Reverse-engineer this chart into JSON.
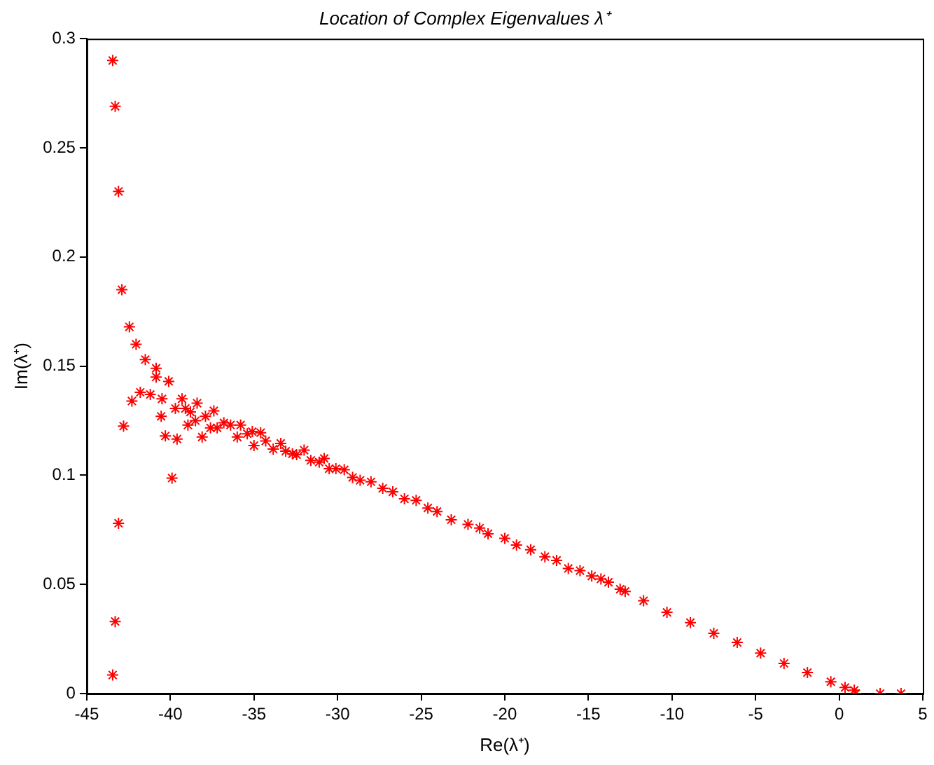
{
  "chart_data": {
    "type": "scatter",
    "title": "Location of Complex Eigenvalues λ⁺",
    "xlabel": "Re(λ⁺)",
    "ylabel": "Im(λ⁺)",
    "xlim": [
      -45,
      5
    ],
    "xticks": [
      -45,
      -40,
      -35,
      -30,
      -25,
      -20,
      -15,
      -10,
      -5,
      0,
      5
    ],
    "ylim": [
      0,
      0.3
    ],
    "yticks": [
      0,
      0.05,
      0.1,
      0.15,
      0.2,
      0.25,
      0.3
    ],
    "grid": false,
    "legend": false,
    "marker": "cross",
    "series": [
      {
        "color": "#ff0000",
        "x": [
          -43.45,
          -43.3,
          -43.1,
          -42.9,
          -42.45,
          -42.05,
          -41.5,
          -40.85,
          -40.85,
          -40.1,
          -41.8,
          -41.2,
          -42.3,
          -40.5,
          -42.8,
          -43.1,
          -43.3,
          -43.45,
          -39.9,
          -40.55,
          -40.3,
          -39.6,
          -39.7,
          -39.3,
          -39.1,
          -38.8,
          -38.95,
          -38.4,
          -38.5,
          -38.1,
          -37.9,
          -37.4,
          -37.6,
          -37.2,
          -36.8,
          -36.4,
          -36.0,
          -35.8,
          -35.4,
          -35.0,
          -35.1,
          -34.6,
          -34.3,
          -33.85,
          -33.4,
          -33.1,
          -32.7,
          -32.45,
          -32.0,
          -31.6,
          -31.1,
          -30.8,
          -30.5,
          -30.1,
          -29.6,
          -29.1,
          -28.65,
          -28.0,
          -27.3,
          -26.7,
          -26.0,
          -25.3,
          -24.6,
          -24.05,
          -23.2,
          -22.2,
          -21.5,
          -21.0,
          -20.0,
          -19.3,
          -18.45,
          -17.6,
          -16.9,
          -16.2,
          -15.5,
          -14.8,
          -14.25,
          -13.8,
          -13.1,
          -12.8,
          -11.7,
          -10.3,
          -8.9,
          -7.5,
          -6.1,
          -4.7,
          -3.3,
          -1.9,
          -0.5,
          0.35,
          0.9,
          1.0,
          2.45,
          3.7
        ],
        "values": [
          0.29,
          0.269,
          0.23,
          0.185,
          0.168,
          0.16,
          0.153,
          0.149,
          0.145,
          0.143,
          0.138,
          0.137,
          0.134,
          0.135,
          0.1225,
          0.078,
          0.033,
          0.0085,
          0.0987,
          0.127,
          0.118,
          0.1166,
          0.1306,
          0.135,
          0.1306,
          0.129,
          0.123,
          0.133,
          0.125,
          0.1175,
          0.127,
          0.1295,
          0.1217,
          0.1217,
          0.124,
          0.123,
          0.1175,
          0.123,
          0.119,
          0.1136,
          0.12,
          0.1195,
          0.1157,
          0.112,
          0.1146,
          0.111,
          0.1098,
          0.1094,
          0.1115,
          0.1068,
          0.106,
          0.1077,
          0.103,
          0.103,
          0.1025,
          0.099,
          0.0977,
          0.097,
          0.094,
          0.0924,
          0.0892,
          0.0885,
          0.085,
          0.0834,
          0.0796,
          0.0775,
          0.0758,
          0.0732,
          0.0711,
          0.068,
          0.0659,
          0.0627,
          0.061,
          0.0573,
          0.0563,
          0.0538,
          0.0525,
          0.051,
          0.0478,
          0.0468,
          0.0425,
          0.0372,
          0.0325,
          0.0276,
          0.0234,
          0.0185,
          0.0138,
          0.0096,
          0.0054,
          0.0028,
          0.0015,
          0,
          0,
          0
        ]
      }
    ]
  }
}
